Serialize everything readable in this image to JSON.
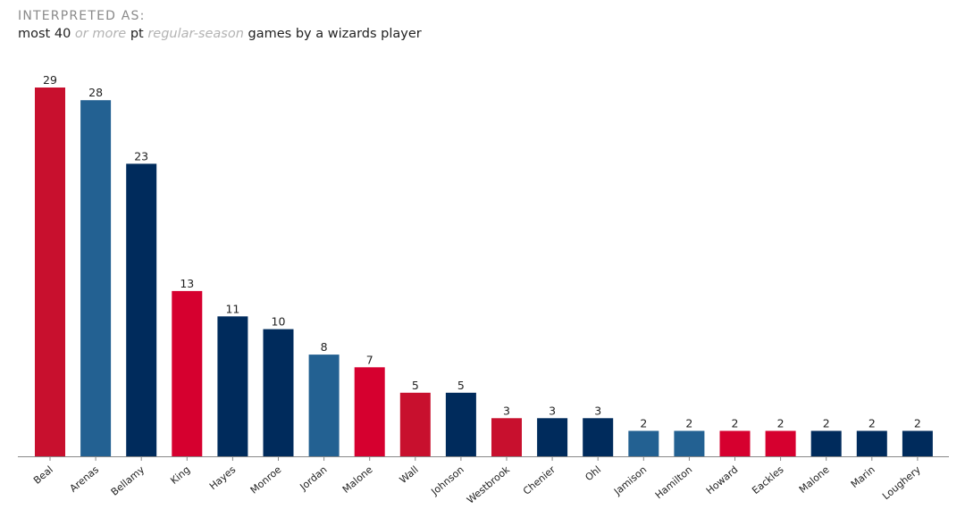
{
  "header": {
    "label": "INTERPRETED AS:",
    "query_parts": [
      {
        "text": "most 40 ",
        "muted": false
      },
      {
        "text": "or more",
        "muted": true
      },
      {
        "text": " pt ",
        "muted": false
      },
      {
        "text": "regular-season",
        "muted": true
      },
      {
        "text": " games by a wizards player",
        "muted": false
      }
    ]
  },
  "colors": {
    "red": "#c8102e",
    "brightRed": "#d6002f",
    "blue": "#236192",
    "navy": "#002b5c",
    "axis": "#888888",
    "text": "#222222"
  },
  "chart_data": {
    "type": "bar",
    "title": "most 40 or more pt regular-season games by a wizards player",
    "xlabel": "",
    "ylabel": "",
    "ylim": [
      0,
      29
    ],
    "grid": false,
    "categories": [
      "Beal",
      "Arenas",
      "Bellamy",
      "King",
      "Hayes",
      "Monroe",
      "Jordan",
      "Malone",
      "Wall",
      "Johnson",
      "Westbrook",
      "Chenier",
      "Ohl",
      "Jamison",
      "Hamilton",
      "Howard",
      "Eackles",
      "Malone",
      "Marin",
      "Loughery"
    ],
    "values": [
      29,
      28,
      23,
      13,
      11,
      10,
      8,
      7,
      5,
      5,
      3,
      3,
      3,
      2,
      2,
      2,
      2,
      2,
      2,
      2
    ],
    "bar_colors": [
      "red",
      "blue",
      "navy",
      "brightRed",
      "navy",
      "navy",
      "blue",
      "brightRed",
      "red",
      "navy",
      "red",
      "navy",
      "navy",
      "blue",
      "blue",
      "brightRed",
      "brightRed",
      "navy",
      "navy",
      "navy"
    ]
  }
}
